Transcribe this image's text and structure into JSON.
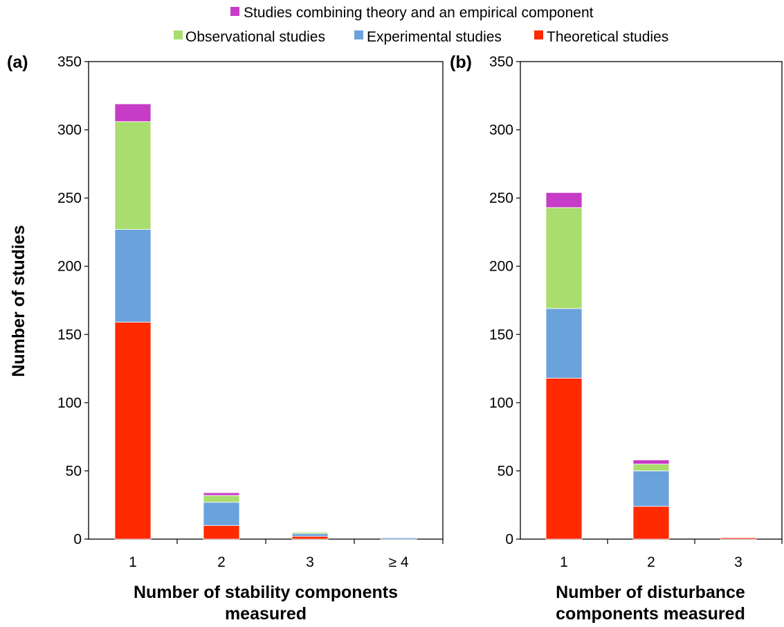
{
  "legend": [
    {
      "key": "combined",
      "label": "Studies combining theory and an empirical component",
      "color": "#c63cc6"
    },
    {
      "key": "observational",
      "label": "Observational studies",
      "color": "#a9dd6e"
    },
    {
      "key": "experimental",
      "label": "Experimental studies",
      "color": "#6aa2dc"
    },
    {
      "key": "theoretical",
      "label": "Theoretical studies",
      "color": "#ff2a00"
    }
  ],
  "ylabel": "Number of studies",
  "chart_data": [
    {
      "type": "bar",
      "stacked": true,
      "panel_label": "(a)",
      "xlabel_lines": [
        "Number of stability components",
        "measured"
      ],
      "categories": [
        "1",
        "2",
        "3",
        "≥ 4"
      ],
      "ylim": [
        0,
        350
      ],
      "yticks": [
        0,
        50,
        100,
        150,
        200,
        250,
        300,
        350
      ],
      "series": [
        {
          "name": "Theoretical studies",
          "color": "#ff2a00",
          "values": [
            159,
            10,
            2,
            0
          ]
        },
        {
          "name": "Experimental studies",
          "color": "#6aa2dc",
          "values": [
            68,
            17,
            2,
            1
          ]
        },
        {
          "name": "Observational studies",
          "color": "#a9dd6e",
          "values": [
            79,
            5,
            1,
            0
          ]
        },
        {
          "name": "Studies combining theory and an empirical component",
          "color": "#c63cc6",
          "values": [
            13,
            2,
            0,
            0
          ]
        }
      ]
    },
    {
      "type": "bar",
      "stacked": true,
      "panel_label": "(b)",
      "xlabel_lines": [
        "Number of disturbance",
        "components measured"
      ],
      "categories": [
        "1",
        "2",
        "3"
      ],
      "ylim": [
        0,
        350
      ],
      "yticks": [
        0,
        50,
        100,
        150,
        200,
        250,
        300,
        350
      ],
      "series": [
        {
          "name": "Theoretical studies",
          "color": "#ff2a00",
          "values": [
            118,
            24,
            1
          ]
        },
        {
          "name": "Experimental studies",
          "color": "#6aa2dc",
          "values": [
            51,
            26,
            0
          ]
        },
        {
          "name": "Observational studies",
          "color": "#a9dd6e",
          "values": [
            74,
            5,
            0
          ]
        },
        {
          "name": "Studies combining theory and an empirical component",
          "color": "#c63cc6",
          "values": [
            11,
            3,
            0
          ]
        }
      ]
    }
  ]
}
